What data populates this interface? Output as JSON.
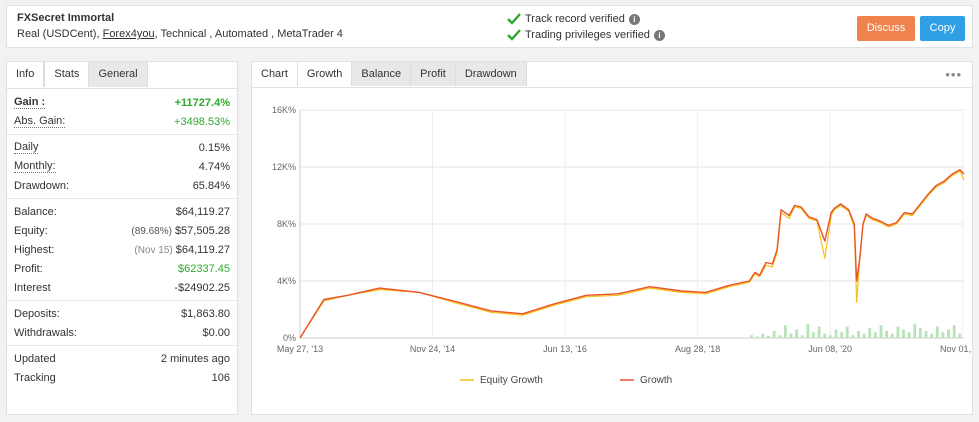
{
  "header": {
    "system_name": "FXSecret Immortal",
    "desc_prefix": "Real (USDCent),",
    "broker": "Forex4you",
    "desc_suffix": ", Technical , Automated , MetaTrader 4",
    "track_record": "Track record verified",
    "trading_privileges": "Trading privileges verified",
    "discuss_label": "Discuss",
    "copy_label": "Copy",
    "verified_color": "#2bab2b",
    "discuss_color": "#f0824d",
    "copy_color": "#2f9fe6"
  },
  "stats_tabs": [
    "Info",
    "Stats",
    "General"
  ],
  "stats": {
    "gain": {
      "label": "Gain :",
      "value": "+11727.4%"
    },
    "abs_gain": {
      "label": "Abs. Gain:",
      "value": "+3498.53%"
    },
    "daily": {
      "label": "Daily",
      "value": "0.15%"
    },
    "monthly": {
      "label": "Monthly:",
      "value": "4.74%"
    },
    "drawdown": {
      "label": "Drawdown:",
      "value": "65.84%"
    },
    "balance": {
      "label": "Balance:",
      "value": "$64,119.27"
    },
    "equity": {
      "label": "Equity:",
      "note": "(89.68%)",
      "value": "$57,505.28"
    },
    "highest": {
      "label": "Highest:",
      "note": "(Nov 15)",
      "value": "$64,119.27"
    },
    "profit": {
      "label": "Profit:",
      "value": "$62337.45"
    },
    "interest": {
      "label": "Interest",
      "value": "-$24902.25"
    },
    "deposits": {
      "label": "Deposits:",
      "value": "$1,863.80"
    },
    "withdrawals": {
      "label": "Withdrawals:",
      "value": "$0.00"
    },
    "updated": {
      "label": "Updated",
      "value": "2 minutes ago"
    },
    "tracking": {
      "label": "Tracking",
      "value": "106"
    }
  },
  "chart_tabs": [
    "Chart",
    "Growth",
    "Balance",
    "Profit",
    "Drawdown"
  ],
  "chart_menu": "•••",
  "chart_data": {
    "type": "line",
    "x_tick_labels": [
      "May 27, '13",
      "Nov 24, '14",
      "Jun 13, '16",
      "Aug 28, '18",
      "Jun 08, '20",
      "Nov 01, '21"
    ],
    "y_tick_labels": [
      "0%",
      "4K%",
      "8K%",
      "12K%",
      "16K%"
    ],
    "ylim": [
      0,
      16000
    ],
    "grid": true,
    "legend": "bottom",
    "series": [
      {
        "name": "Equity Growth",
        "color": "#f5c116",
        "x": [
          0,
          0.3,
          0.6,
          1.0,
          1.5,
          2.0,
          2.4,
          2.8,
          3.2,
          3.6,
          4.0,
          4.4,
          4.8,
          5.1,
          5.4,
          5.65,
          5.72,
          5.78,
          5.86,
          5.94,
          6.0,
          6.05,
          6.15,
          6.22,
          6.3,
          6.4,
          6.5,
          6.6,
          6.68,
          6.72,
          6.8,
          6.9,
          6.97,
          7.0,
          7.04,
          7.08,
          7.12,
          7.2,
          7.3,
          7.4,
          7.5,
          7.6,
          7.7,
          7.8,
          7.9,
          8.0,
          8.1,
          8.2,
          8.3,
          8.35
        ],
        "values": [
          0,
          2600,
          3000,
          3400,
          3200,
          2400,
          1800,
          1600,
          2300,
          2900,
          3000,
          3500,
          3200,
          3100,
          3600,
          3900,
          4500,
          4300,
          5100,
          5000,
          6000,
          8800,
          8400,
          9200,
          9100,
          8400,
          8200,
          5600,
          8600,
          9000,
          9300,
          8900,
          7800,
          2500,
          5500,
          7900,
          8600,
          8300,
          8100,
          7800,
          8000,
          8700,
          8600,
          9300,
          10000,
          10600,
          10900,
          11400,
          11700,
          11100
        ]
      },
      {
        "name": "Growth",
        "color": "#e8542a",
        "x": [
          0,
          0.3,
          0.6,
          1.0,
          1.5,
          2.0,
          2.4,
          2.8,
          3.2,
          3.6,
          4.0,
          4.4,
          4.8,
          5.1,
          5.4,
          5.65,
          5.72,
          5.78,
          5.86,
          5.94,
          6.0,
          6.05,
          6.15,
          6.22,
          6.3,
          6.4,
          6.5,
          6.6,
          6.68,
          6.72,
          6.8,
          6.9,
          6.97,
          7.0,
          7.04,
          7.08,
          7.12,
          7.2,
          7.3,
          7.4,
          7.5,
          7.6,
          7.7,
          7.8,
          7.9,
          8.0,
          8.1,
          8.2,
          8.3,
          8.35
        ],
        "values": [
          0,
          2700,
          3000,
          3500,
          3200,
          2500,
          1900,
          1700,
          2400,
          3000,
          3100,
          3600,
          3300,
          3200,
          3700,
          4000,
          4600,
          4400,
          5300,
          5200,
          6200,
          9000,
          8600,
          9300,
          9200,
          8500,
          8300,
          6800,
          8800,
          9100,
          9400,
          9000,
          8000,
          4000,
          5600,
          8000,
          8700,
          8400,
          8200,
          7900,
          8100,
          8800,
          8700,
          9400,
          10100,
          10700,
          11000,
          11500,
          11800,
          11500
        ]
      }
    ],
    "volume_bars": [
      0,
      0,
      0,
      0,
      0,
      0,
      0,
      0,
      0,
      0,
      0,
      0,
      0,
      0,
      0,
      0,
      0,
      0,
      0,
      0,
      0,
      0,
      0,
      0,
      0,
      0,
      0,
      0,
      0,
      0,
      0,
      0,
      0,
      0,
      0,
      0,
      0,
      0,
      0,
      0,
      0,
      0,
      0,
      0,
      0,
      0,
      0,
      0,
      0,
      0,
      0,
      0,
      0,
      0,
      0,
      0,
      0,
      0,
      0,
      0,
      0,
      0,
      0,
      0,
      0,
      0,
      0,
      0,
      0,
      0,
      0,
      0,
      0,
      0,
      0,
      0,
      0,
      0,
      0,
      0,
      200,
      100,
      300,
      150,
      500,
      200,
      900,
      300,
      600,
      200,
      1000,
      400,
      800,
      300,
      200,
      600,
      400,
      800,
      200,
      500,
      300,
      700,
      400,
      900,
      500,
      300,
      800,
      600,
      400,
      1000,
      700,
      500,
      300,
      800,
      400,
      600,
      900,
      300
    ]
  }
}
